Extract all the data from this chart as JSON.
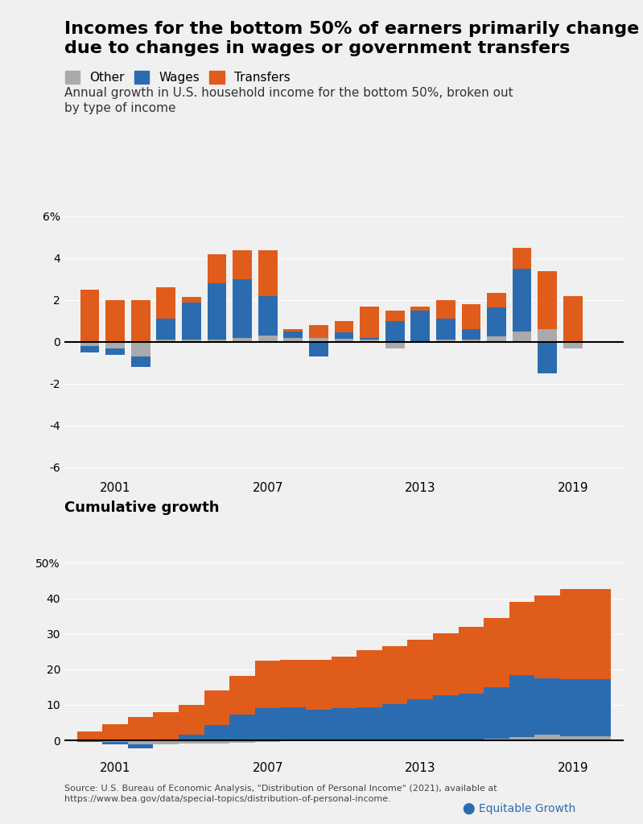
{
  "title": "Incomes for the bottom 50% of earners primarily change\ndue to changes in wages or government transfers",
  "subtitle": "Annual growth in U.S. household income for the bottom 50%, broken out\nby type of income",
  "cumulative_title": "Cumulative growth",
  "source": "Source: U.S. Bureau of Economic Analysis, \"Distribution of Personal Income\" (2021), available at\nhttps://www.bea.gov/data/special-topics/distribution-of-personal-income.",
  "years": [
    2000,
    2001,
    2002,
    2003,
    2004,
    2005,
    2006,
    2007,
    2008,
    2009,
    2010,
    2011,
    2012,
    2013,
    2014,
    2015,
    2016,
    2017,
    2018,
    2019,
    2020
  ],
  "annual_other": [
    -0.2,
    -0.2,
    -0.7,
    0.1,
    0.1,
    0.1,
    0.2,
    0.3,
    0.2,
    0.2,
    0.2,
    0.1,
    -0.3,
    0.0,
    0.1,
    0.1,
    0.2,
    0.5,
    0.6,
    -0.3,
    0.1
  ],
  "annual_wages": [
    -0.3,
    -0.3,
    -0.5,
    1.0,
    1.8,
    2.7,
    2.8,
    1.9,
    0.3,
    -0.7,
    0.3,
    0.1,
    1.0,
    1.5,
    1.0,
    0.5,
    1.4,
    3.0,
    -1.5,
    0.0,
    0.0
  ],
  "annual_transfers": [
    2.5,
    2.0,
    2.0,
    1.5,
    0.2,
    1.5,
    1.5,
    2.3,
    0.1,
    0.6,
    0.6,
    1.5,
    0.5,
    0.2,
    0.9,
    1.2,
    0.7,
    1.0,
    2.8,
    2.2,
    0.0
  ],
  "color_other": "#aaaaaa",
  "color_wages": "#2b6cb0",
  "color_transfers": "#e05c1a",
  "bg_color": "#f0f0f0",
  "annual_ylim": [
    -6.5,
    6.5
  ],
  "annual_yticks": [
    -6,
    -4,
    -2,
    0,
    2,
    4,
    6
  ],
  "cumulative_ylim": [
    -5,
    60
  ],
  "cumulative_yticks": [
    0,
    10,
    20,
    30,
    40,
    50
  ],
  "xtick_years": [
    2001,
    2007,
    2013,
    2019
  ]
}
